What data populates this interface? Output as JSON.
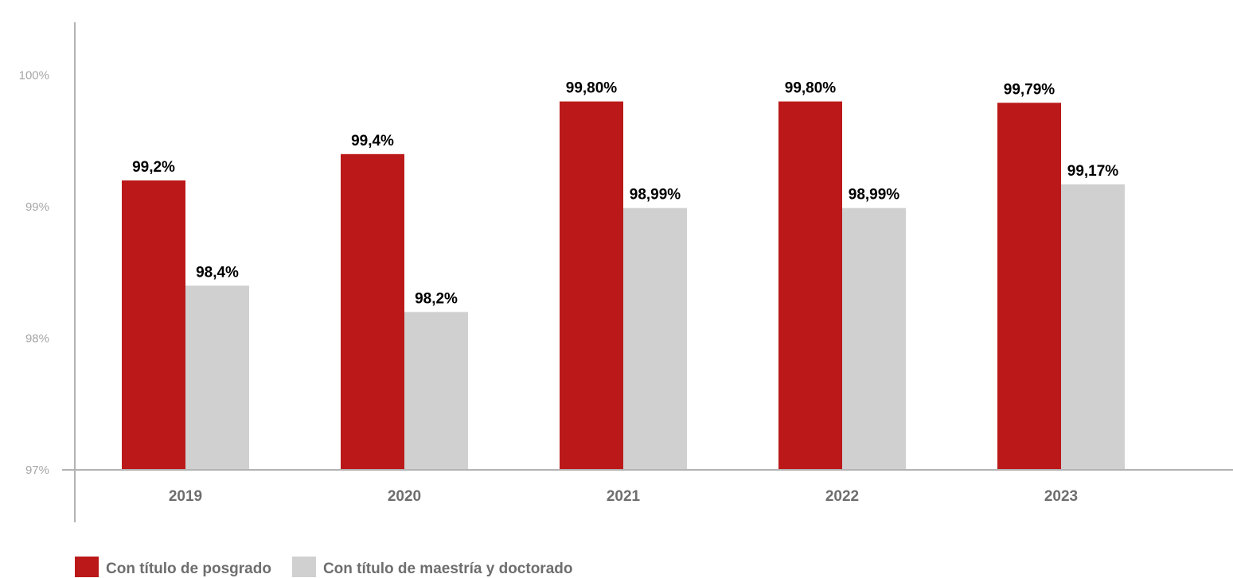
{
  "chart_data": {
    "type": "bar",
    "categories": [
      "2019",
      "2020",
      "2021",
      "2022",
      "2023"
    ],
    "series": [
      {
        "name": "Con título de posgrado",
        "color": "#bb1919",
        "values": [
          99.2,
          99.4,
          99.8,
          99.8,
          99.79
        ],
        "labels": [
          "99,2%",
          "99,4%",
          "99,80%",
          "99,80%",
          "99,79%"
        ]
      },
      {
        "name": "Con título de maestría y doctorado",
        "color": "#d0d0d0",
        "values": [
          98.4,
          98.2,
          98.99,
          98.99,
          99.17
        ],
        "labels": [
          "98,4%",
          "98,2%",
          "98,99%",
          "98,99%",
          "99,17%"
        ]
      }
    ],
    "y_ticks": [
      {
        "value": 100,
        "label": "100%"
      },
      {
        "value": 99,
        "label": "99%"
      },
      {
        "value": 98,
        "label": "98%"
      },
      {
        "value": 97,
        "label": "97%"
      }
    ],
    "ylim": [
      97,
      100.4
    ],
    "title": "",
    "xlabel": "",
    "ylabel": "",
    "grid": false,
    "legend_position": "bottom-left"
  }
}
